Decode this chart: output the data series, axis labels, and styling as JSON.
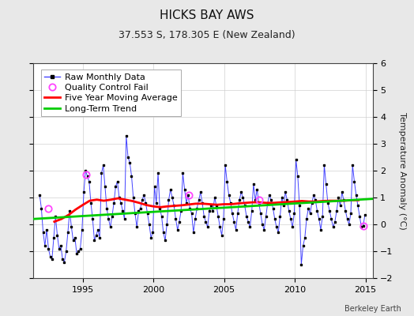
{
  "title": "HICKS BAY AWS",
  "subtitle": "37.553 S, 178.305 E (New Zealand)",
  "ylabel": "Temperature Anomaly (°C)",
  "attribution": "Berkeley Earth",
  "xlim": [
    1991.5,
    2015.5
  ],
  "ylim": [
    -2,
    6
  ],
  "yticks": [
    -2,
    -1,
    0,
    1,
    2,
    3,
    4,
    5,
    6
  ],
  "xticks": [
    1995,
    2000,
    2005,
    2010,
    2015
  ],
  "background_color": "#e8e8e8",
  "plot_bg_color": "#ffffff",
  "raw_line_color": "#4444ff",
  "raw_marker_color": "#000000",
  "moving_avg_color": "#ff0000",
  "trend_color": "#00cc00",
  "qc_fail_color": "#ff44ff",
  "legend_fontsize": 8,
  "title_fontsize": 11,
  "subtitle_fontsize": 9,
  "raw_data": {
    "years": [
      1991.958,
      1992.083,
      1992.208,
      1992.333,
      1992.458,
      1992.583,
      1992.708,
      1992.833,
      1992.958,
      1993.083,
      1993.208,
      1993.333,
      1993.458,
      1993.583,
      1993.708,
      1993.833,
      1993.958,
      1994.083,
      1994.208,
      1994.333,
      1994.458,
      1994.583,
      1994.708,
      1994.833,
      1994.958,
      1995.083,
      1995.208,
      1995.333,
      1995.458,
      1995.583,
      1995.708,
      1995.833,
      1995.958,
      1996.083,
      1996.208,
      1996.333,
      1996.458,
      1996.583,
      1996.708,
      1996.833,
      1996.958,
      1997.083,
      1997.208,
      1997.333,
      1997.458,
      1997.583,
      1997.708,
      1997.833,
      1997.958,
      1998.083,
      1998.208,
      1998.333,
      1998.458,
      1998.583,
      1998.708,
      1998.833,
      1998.958,
      1999.083,
      1999.208,
      1999.333,
      1999.458,
      1999.583,
      1999.708,
      1999.833,
      1999.958,
      2000.083,
      2000.208,
      2000.333,
      2000.458,
      2000.583,
      2000.708,
      2000.833,
      2000.958,
      2001.083,
      2001.208,
      2001.333,
      2001.458,
      2001.583,
      2001.708,
      2001.833,
      2001.958,
      2002.083,
      2002.208,
      2002.333,
      2002.458,
      2002.583,
      2002.708,
      2002.833,
      2002.958,
      2003.083,
      2003.208,
      2003.333,
      2003.458,
      2003.583,
      2003.708,
      2003.833,
      2003.958,
      2004.083,
      2004.208,
      2004.333,
      2004.458,
      2004.583,
      2004.708,
      2004.833,
      2004.958,
      2005.083,
      2005.208,
      2005.333,
      2005.458,
      2005.583,
      2005.708,
      2005.833,
      2005.958,
      2006.083,
      2006.208,
      2006.333,
      2006.458,
      2006.583,
      2006.708,
      2006.833,
      2006.958,
      2007.083,
      2007.208,
      2007.333,
      2007.458,
      2007.583,
      2007.708,
      2007.833,
      2007.958,
      2008.083,
      2008.208,
      2008.333,
      2008.458,
      2008.583,
      2008.708,
      2008.833,
      2008.958,
      2009.083,
      2009.208,
      2009.333,
      2009.458,
      2009.583,
      2009.708,
      2009.833,
      2009.958,
      2010.083,
      2010.208,
      2010.333,
      2010.458,
      2010.583,
      2010.708,
      2010.833,
      2010.958,
      2011.083,
      2011.208,
      2011.333,
      2011.458,
      2011.583,
      2011.708,
      2011.833,
      2011.958,
      2012.083,
      2012.208,
      2012.333,
      2012.458,
      2012.583,
      2012.708,
      2012.833,
      2012.958,
      2013.083,
      2013.208,
      2013.333,
      2013.458,
      2013.583,
      2013.708,
      2013.833,
      2013.958,
      2014.083,
      2014.208,
      2014.333,
      2014.458,
      2014.583,
      2014.708,
      2014.833,
      2014.958
    ],
    "values": [
      1.1,
      0.6,
      -0.3,
      -0.8,
      -0.2,
      -0.9,
      -1.2,
      -1.3,
      -0.5,
      0.3,
      -0.4,
      -0.9,
      -0.8,
      -1.3,
      -1.4,
      -1.0,
      -0.3,
      0.5,
      -0.1,
      -0.6,
      -0.5,
      -1.1,
      -1.0,
      -0.9,
      -0.2,
      1.2,
      2.0,
      1.8,
      1.6,
      0.8,
      0.2,
      -0.6,
      -0.4,
      -0.2,
      -0.5,
      1.9,
      2.2,
      1.4,
      0.6,
      0.2,
      -0.1,
      0.3,
      0.8,
      1.4,
      1.6,
      1.0,
      0.8,
      0.5,
      0.2,
      3.3,
      2.5,
      2.3,
      1.8,
      1.0,
      0.4,
      -0.1,
      0.5,
      0.6,
      0.9,
      1.1,
      0.8,
      0.4,
      0.0,
      -0.5,
      -0.3,
      1.4,
      0.8,
      1.9,
      0.6,
      0.3,
      -0.3,
      -0.6,
      0.0,
      0.9,
      1.3,
      1.0,
      0.7,
      0.2,
      -0.2,
      0.1,
      0.5,
      1.9,
      1.3,
      0.8,
      1.1,
      0.6,
      0.4,
      -0.3,
      0.2,
      0.6,
      0.9,
      1.2,
      0.8,
      0.3,
      0.1,
      -0.1,
      0.5,
      0.7,
      0.5,
      1.0,
      0.7,
      0.3,
      -0.1,
      -0.4,
      0.2,
      2.2,
      1.6,
      1.1,
      0.8,
      0.4,
      0.1,
      -0.2,
      0.4,
      0.9,
      1.2,
      1.0,
      0.7,
      0.3,
      0.1,
      -0.1,
      0.5,
      1.5,
      0.9,
      1.3,
      0.8,
      0.4,
      0.0,
      -0.2,
      0.3,
      0.8,
      1.1,
      0.9,
      0.6,
      0.2,
      -0.1,
      -0.3,
      0.3,
      1.0,
      0.7,
      1.2,
      0.9,
      0.5,
      0.2,
      -0.1,
      0.4,
      2.4,
      1.8,
      0.7,
      -1.5,
      -0.8,
      -0.5,
      0.2,
      0.6,
      0.4,
      0.8,
      1.1,
      0.9,
      0.5,
      0.2,
      -0.2,
      0.3,
      2.2,
      1.5,
      0.8,
      0.5,
      0.2,
      -0.1,
      0.1,
      0.5,
      1.0,
      0.7,
      1.2,
      0.9,
      0.5,
      0.2,
      0.0,
      0.4,
      2.2,
      1.6,
      1.1,
      0.7,
      0.3,
      -0.1,
      -0.05,
      0.35
    ]
  },
  "qc_fail_points": {
    "years": [
      1992.58,
      1995.25,
      2002.5,
      2007.5,
      2014.83
    ],
    "values": [
      0.6,
      1.85,
      1.1,
      0.9,
      -0.05
    ]
  },
  "moving_avg": {
    "years": [
      1993.0,
      1993.5,
      1994.0,
      1994.5,
      1995.0,
      1995.5,
      1996.0,
      1996.5,
      1997.0,
      1997.5,
      1998.0,
      1998.5,
      1999.0,
      1999.5,
      2000.0,
      2000.5,
      2001.0,
      2001.5,
      2002.0,
      2002.5,
      2003.0,
      2003.5,
      2004.0,
      2004.5,
      2005.0,
      2005.5,
      2006.0,
      2006.5,
      2007.0,
      2007.5,
      2008.0,
      2008.5,
      2009.0,
      2009.5,
      2010.0,
      2010.5,
      2011.0,
      2011.5,
      2012.0,
      2012.5,
      2013.0,
      2013.5,
      2014.0,
      2014.5
    ],
    "values": [
      0.1,
      0.2,
      0.35,
      0.55,
      0.72,
      0.88,
      0.92,
      0.88,
      0.92,
      0.97,
      0.92,
      0.87,
      0.8,
      0.72,
      0.67,
      0.64,
      0.67,
      0.69,
      0.71,
      0.74,
      0.77,
      0.77,
      0.75,
      0.73,
      0.75,
      0.75,
      0.78,
      0.8,
      0.82,
      0.82,
      0.8,
      0.8,
      0.82,
      0.83,
      0.85,
      0.87,
      0.85,
      0.85,
      0.87,
      0.88,
      0.88,
      0.88,
      0.9,
      0.9
    ]
  },
  "trend": {
    "years": [
      1991.5,
      2015.5
    ],
    "values": [
      0.2,
      0.95
    ]
  }
}
